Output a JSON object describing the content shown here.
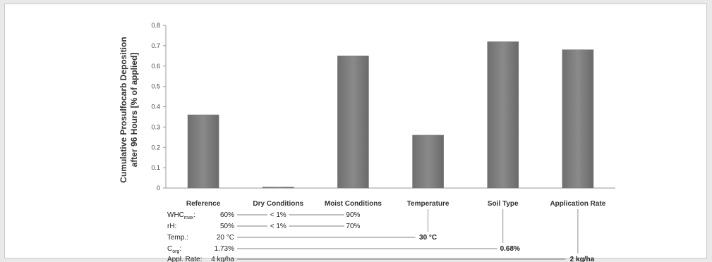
{
  "chart_data": {
    "type": "bar",
    "ylabel_line1": "Cumulative Prosulfocarb Deposition",
    "ylabel_line2": "after 96 Hours [% of applied]",
    "ylim": [
      0,
      0.8
    ],
    "yticks": [
      "0",
      "0.1",
      "0.2",
      "0.3",
      "0.4",
      "0.5",
      "0.6",
      "0.7",
      "0.8"
    ],
    "categories": [
      "Reference",
      "Dry Conditions",
      "Moist Conditions",
      "Temperature",
      "Soil Type",
      "Application Rate"
    ],
    "values": [
      0.36,
      0.005,
      0.65,
      0.26,
      0.72,
      0.68
    ],
    "bar_color": "#8a8a8a",
    "grid": false,
    "legend": "none"
  },
  "conditions": {
    "rows": [
      {
        "label": "WHC",
        "sub": "max",
        "suffix": ":",
        "reference": "60%",
        "values": [
          {
            "text": "< 1%",
            "col": 1
          },
          {
            "text": "90%",
            "col": 2
          }
        ]
      },
      {
        "label": "rH:",
        "sub": "",
        "suffix": "",
        "reference": "50%",
        "values": [
          {
            "text": "< 1%",
            "col": 1
          },
          {
            "text": "70%",
            "col": 2
          }
        ]
      },
      {
        "label": "Temp.:",
        "sub": "",
        "suffix": "",
        "reference": "20 °C",
        "values": [
          {
            "text": "30 °C",
            "col": 3
          }
        ]
      },
      {
        "label": "C",
        "sub": "org",
        "suffix": ":",
        "reference": "1.73%",
        "values": [
          {
            "text": "0.68%",
            "col": 4
          }
        ]
      },
      {
        "label": "Appl. Rate:",
        "sub": "",
        "suffix": "",
        "reference": "4 kg/ha",
        "values": [
          {
            "text": "2 kg/ha",
            "col": 5
          }
        ]
      }
    ]
  }
}
